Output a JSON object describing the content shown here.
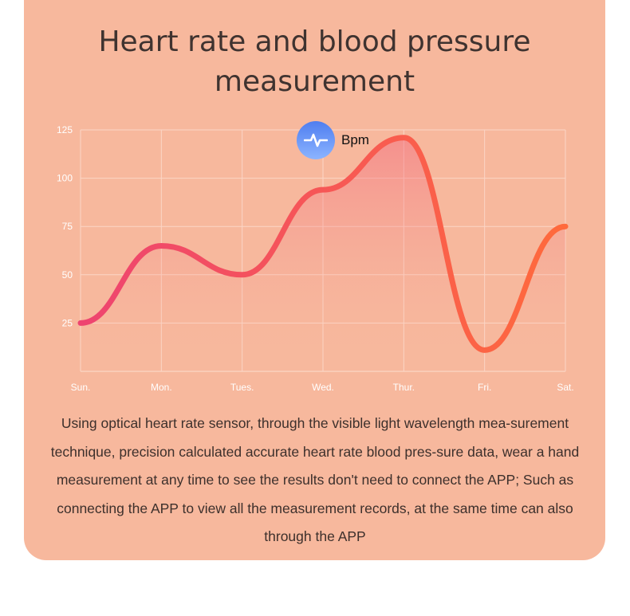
{
  "header": {
    "title": "Heart rate and blood pressure measurement"
  },
  "description": "Using optical heart rate sensor, through the visible light wavelength mea-surement technique, precision calculated accurate heart rate blood pres-sure data, wear a hand measurement at any time to see the results don't need to connect the APP; Such as connecting the APP to view all the measurement records, at the same time can also through the APP",
  "colors": {
    "card": "#f7b89d",
    "line_start": "#ee4470",
    "line_end": "#ff6a3c",
    "legend_icon": "#5b8bf5"
  },
  "chart_data": {
    "type": "line",
    "categories": [
      "Sun.",
      "Mon.",
      "Tues.",
      "Wed.",
      "Thur.",
      "Fri.",
      "Sat."
    ],
    "series": [
      {
        "name": "Bpm",
        "icon": "heartbeat-icon",
        "values": [
          25,
          65,
          50,
          94,
          121,
          11,
          75
        ]
      }
    ],
    "yticks": [
      "25",
      "50",
      "75",
      "100",
      "125"
    ],
    "ylim": [
      0,
      125
    ],
    "grid": true,
    "legend": "top-center",
    "smooth": true,
    "area_fill": true
  }
}
